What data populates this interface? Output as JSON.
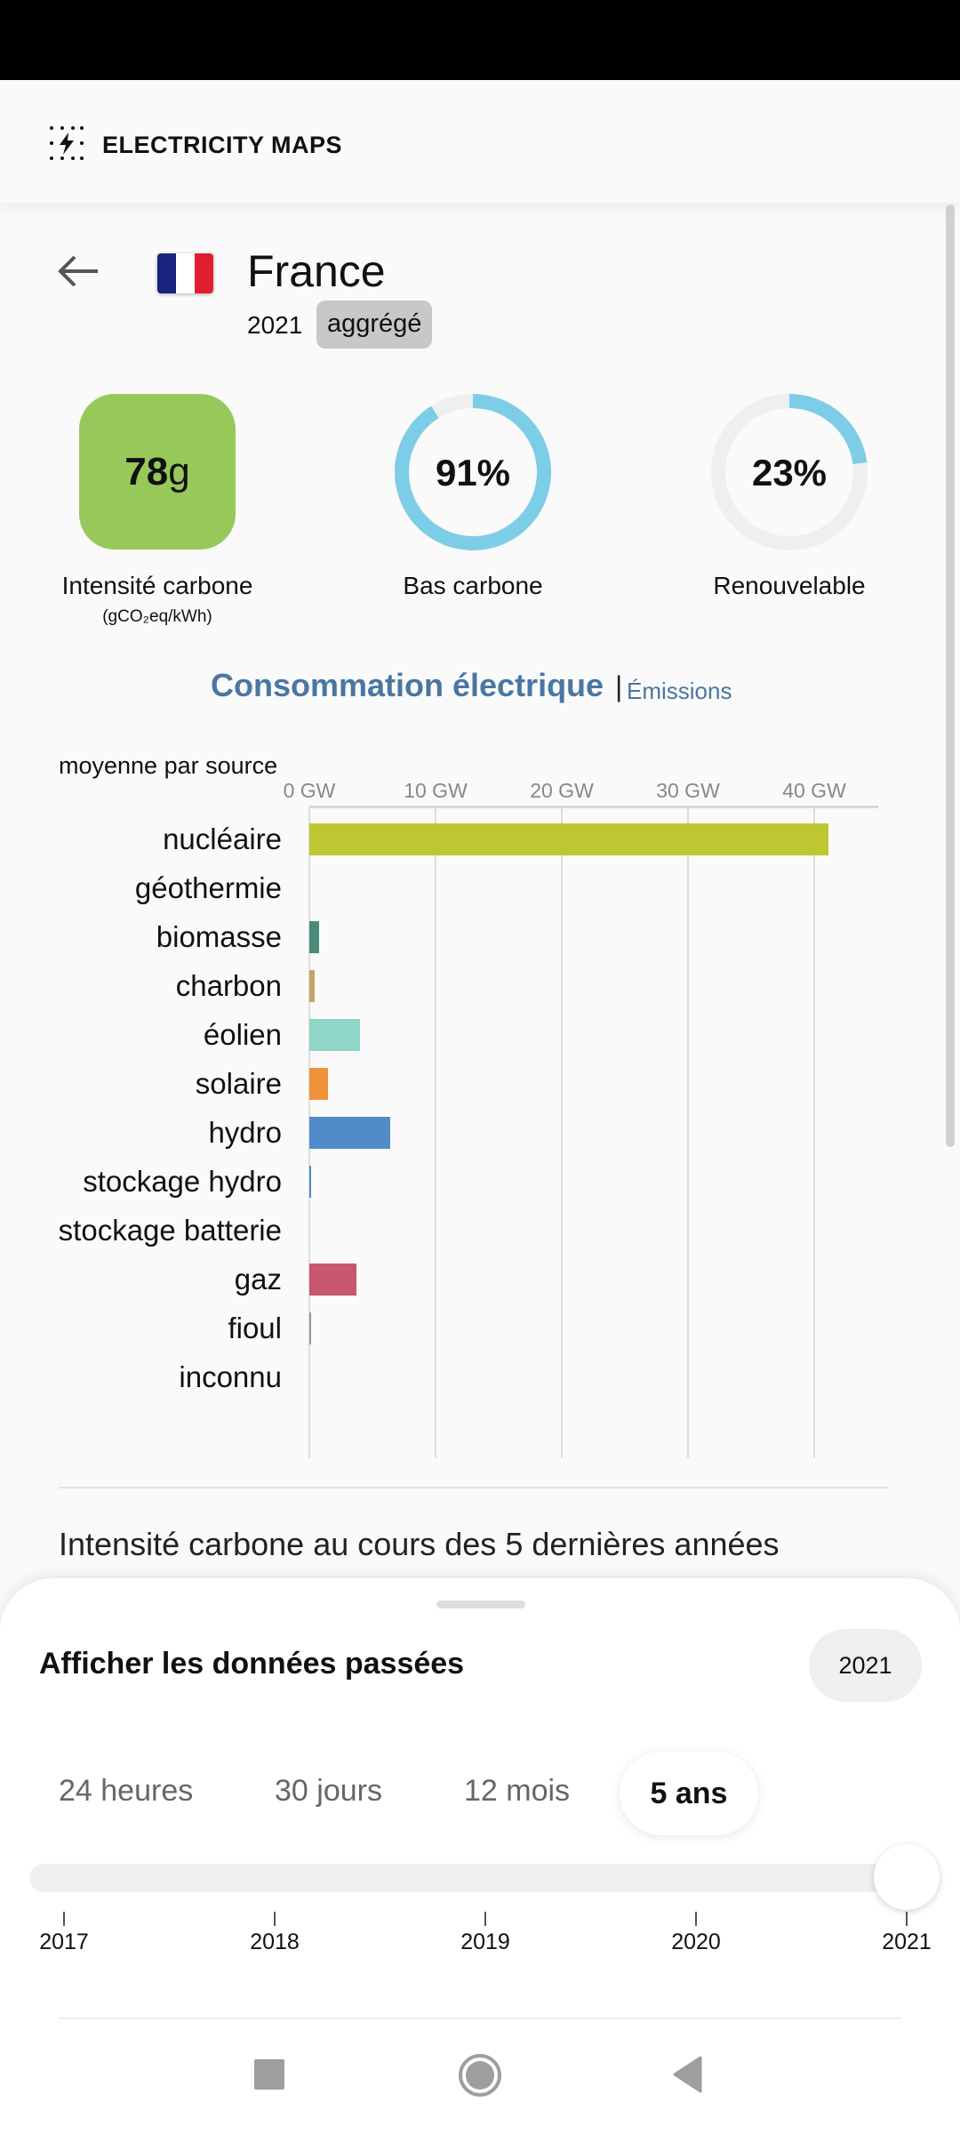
{
  "app": {
    "title": "ELECTRICITY MAPS"
  },
  "zone": {
    "country": "France",
    "year": "2021",
    "badge": "aggrégé"
  },
  "metrics": {
    "carbon_intensity": {
      "value": "78",
      "unit": "g",
      "label": "Intensité carbone",
      "sublabel": "(gCO₂eq/kWh)",
      "color": "#97c85a"
    },
    "low_carbon": {
      "value": "91%",
      "fraction": 0.91,
      "label": "Bas carbone"
    },
    "renewable": {
      "value": "23%",
      "fraction": 0.23,
      "label": "Renouvelable"
    },
    "ring_color": "#7ecde8"
  },
  "tabs": {
    "consumption": "Consommation électrique",
    "separator": "|",
    "emissions": "Émissions"
  },
  "chart_data": {
    "type": "bar",
    "title": "moyenne par source",
    "unit": "GW",
    "xlim": [
      0,
      45
    ],
    "ticks": [
      "0 GW",
      "10 GW",
      "20 GW",
      "30 GW",
      "40 GW"
    ],
    "tick_values": [
      0,
      10,
      20,
      30,
      40
    ],
    "categories": [
      "nucléaire",
      "géothermie",
      "biomasse",
      "charbon",
      "éolien",
      "solaire",
      "hydro",
      "stockage hydro",
      "stockage batterie",
      "gaz",
      "fioul",
      "inconnu"
    ],
    "values": [
      41.1,
      0,
      0.8,
      0.4,
      4.0,
      1.5,
      6.4,
      0.1,
      0,
      3.7,
      0.15,
      0
    ],
    "colors": [
      "#bec632",
      "#c0a000",
      "#4a8a7a",
      "#c4a66a",
      "#90d6c6",
      "#f0923c",
      "#508cc8",
      "#508cc8",
      "#9bc",
      "#c8576e",
      "#999",
      "#ccc"
    ]
  },
  "history": {
    "title": "Intensité carbone au cours des 5 dernières années"
  },
  "sheet": {
    "title": "Afficher les données passées",
    "selected_year": "2021",
    "ranges": [
      "24 heures",
      "30 jours",
      "12 mois",
      "5 ans"
    ],
    "slider_years": [
      "2017",
      "2018",
      "2019",
      "2020",
      "2021"
    ],
    "slider_position": 1.0
  }
}
